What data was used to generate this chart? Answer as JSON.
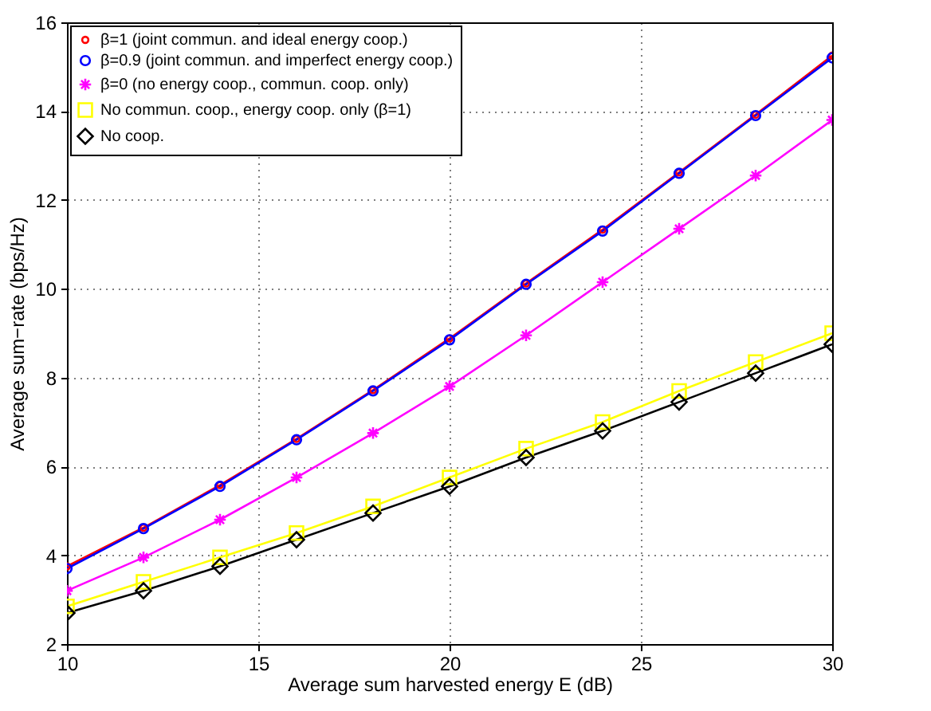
{
  "chart_data": {
    "type": "line",
    "xlabel": "Average sum harvested energy E (dB)",
    "ylabel": "Average sum−rate (bps/Hz)",
    "x": [
      10,
      12,
      14,
      16,
      18,
      20,
      22,
      24,
      26,
      28,
      30
    ],
    "series": [
      {
        "name": "β=1 (joint commun. and ideal energy coop.)",
        "color": "#ff0000",
        "marker": "circle",
        "values": [
          3.75,
          4.62,
          5.58,
          6.62,
          7.72,
          8.88,
          10.12,
          11.33,
          12.62,
          13.92,
          15.25
        ]
      },
      {
        "name": "β=0.9 (joint commun. and imperfect energy coop.)",
        "color": "#0000ff",
        "marker": "circle",
        "values": [
          3.7,
          4.6,
          5.55,
          6.6,
          7.7,
          8.85,
          10.1,
          11.3,
          12.6,
          13.9,
          15.2
        ]
      },
      {
        "name": "β=0 (no energy coop., commun. coop. only)",
        "color": "#ff00ff",
        "marker": "cross",
        "values": [
          3.2,
          3.95,
          4.8,
          5.75,
          6.75,
          7.8,
          8.95,
          10.15,
          11.35,
          12.55,
          13.8
        ]
      },
      {
        "name": "No commun. coop., energy coop. only (β=1)",
        "color": "#ffff00",
        "marker": "square",
        "values": [
          2.85,
          3.4,
          3.95,
          4.5,
          5.1,
          5.75,
          6.4,
          7.0,
          7.7,
          8.35,
          9.0
        ]
      },
      {
        "name": "No coop.",
        "color": "#000000",
        "marker": "diamond",
        "values": [
          2.7,
          3.2,
          3.75,
          4.35,
          4.95,
          5.55,
          6.2,
          6.8,
          7.45,
          8.1,
          8.75
        ]
      }
    ],
    "xlim": [
      10,
      30
    ],
    "xticks": [
      10,
      15,
      20,
      25,
      30
    ],
    "ylim": [
      2,
      16
    ],
    "yticks": [
      2,
      4,
      6,
      8,
      10,
      12,
      14,
      16
    ],
    "grid": true,
    "legend": "top left",
    "line_style": "solid"
  }
}
